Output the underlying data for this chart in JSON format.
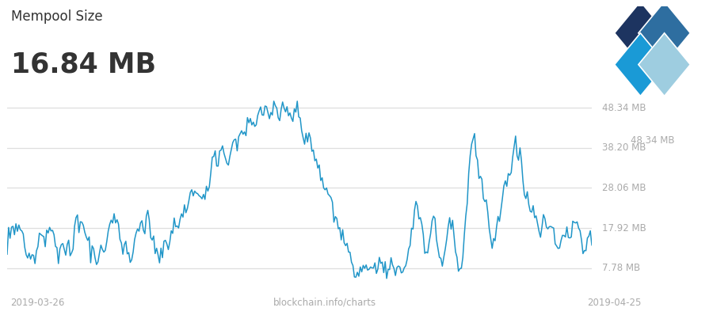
{
  "title_small": "Mempool Size",
  "title_large": "16.84 MB",
  "xlabel_left": "2019-03-26",
  "xlabel_center": "blockchain.info/charts",
  "xlabel_right": "2019-04-25",
  "yticks": [
    7.78,
    17.92,
    28.06,
    38.2,
    48.34
  ],
  "ytick_labels": [
    "7.78 MB",
    "17.92 MB",
    "28.06 MB",
    "38.20 MB",
    "48.34 MB"
  ],
  "ymax_label": "48.34 MB",
  "line_color": "#2196C8",
  "bg_color": "#FFFFFF",
  "grid_color": "#DEDEDE",
  "text_color_dark": "#333333",
  "text_color_light": "#AAAAAA",
  "ylim": [
    3.0,
    53.0
  ],
  "logo_colors": [
    "#1D3460",
    "#2E6EA0",
    "#1A9AD6",
    "#9ECDE0"
  ]
}
